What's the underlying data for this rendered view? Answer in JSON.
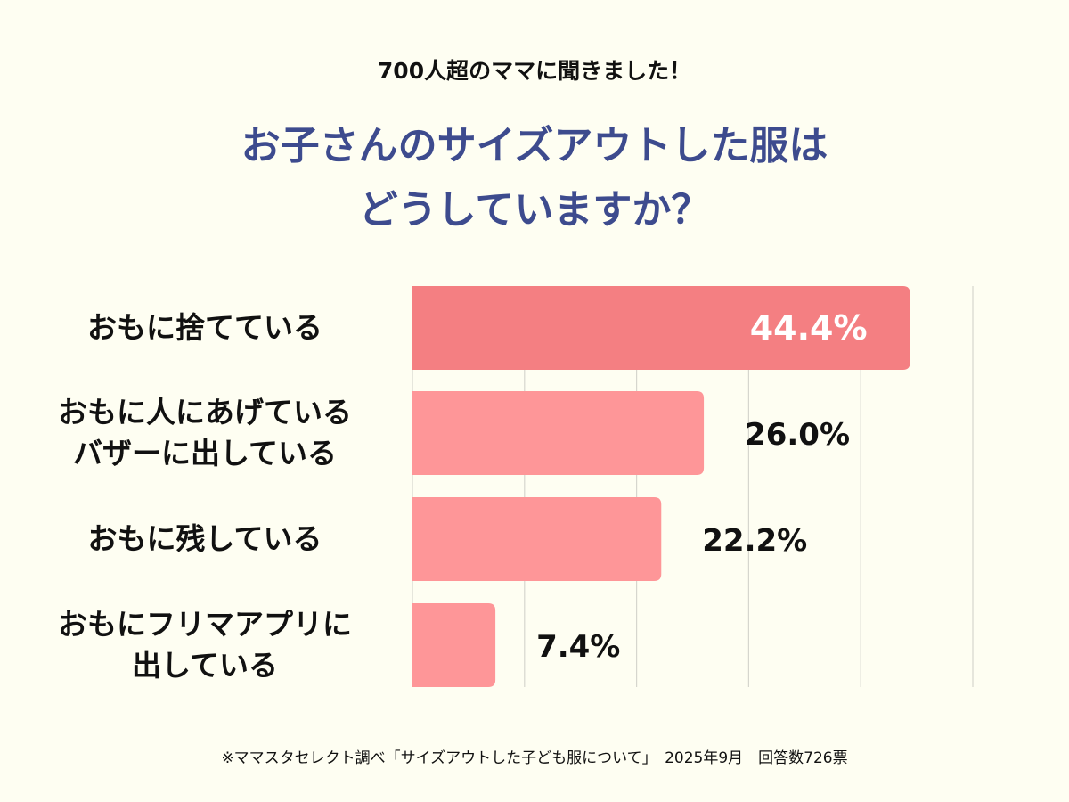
{
  "header": {
    "subtitle": "700人超のママに聞きました！",
    "title_line1": "お子さんのサイズアウトした服は",
    "title_line2": "どうしていますか？"
  },
  "chart_data": {
    "type": "bar",
    "orientation": "horizontal",
    "categories": [
      "おもに捨てている",
      "おもに人にあげている\nバザーに出している",
      "おもに残している",
      "おもにフリマアプリに\n出している"
    ],
    "values": [
      44.4,
      26.0,
      22.2,
      7.4
    ],
    "value_labels": [
      "44.4%",
      "26.0%",
      "22.2%",
      "7.4%"
    ],
    "xlim": [
      0,
      50
    ],
    "grid": true,
    "colors": {
      "highlight": "#f47f82",
      "bar": "#fe9698",
      "grid": "#d6d6ce",
      "highlight_label": "#ffffff",
      "label": "#111111"
    }
  },
  "footnote": "※ママスタセレクト調べ「サイズアウトした子ども服について」　2025年9月　回答数726票"
}
